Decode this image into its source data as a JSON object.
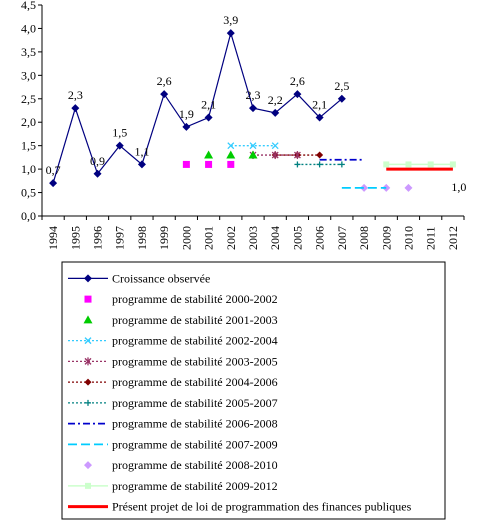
{
  "chart_data": {
    "type": "line",
    "x": [
      "1994",
      "1995",
      "1996",
      "1997",
      "1998",
      "1999",
      "2000",
      "2001",
      "2002",
      "2003",
      "2004",
      "2005",
      "2006",
      "2007",
      "2008",
      "2009",
      "2010",
      "2011",
      "2012"
    ],
    "ylim": [
      0,
      4.5
    ],
    "yticks": [
      "0,0",
      "0,5",
      "1,0",
      "1,5",
      "2,0",
      "2,5",
      "3,0",
      "3,5",
      "4,0",
      "4,5"
    ],
    "grid": false,
    "legend_position": "bottom",
    "series": [
      {
        "name": "Croissance observée",
        "style": "solid-line-diamond",
        "color": "#000080",
        "x": [
          "1994",
          "1995",
          "1996",
          "1997",
          "1998",
          "1999",
          "2000",
          "2001",
          "2002",
          "2003",
          "2004",
          "2005",
          "2006",
          "2007"
        ],
        "values": [
          0.7,
          2.3,
          0.9,
          1.5,
          1.1,
          2.6,
          1.9,
          2.1,
          3.9,
          2.3,
          2.2,
          2.6,
          2.1,
          2.5
        ],
        "labels": [
          "0,7",
          "2,3",
          "0,9",
          "1,5",
          "1,1",
          "2,6",
          "1,9",
          "2,1",
          "3,9",
          "2,3",
          "2,2",
          "2,6",
          "2,1",
          "2,5"
        ]
      },
      {
        "name": "programme de stabilité 2000-2002",
        "style": "marker-square",
        "color": "#FF00FF",
        "x": [
          "2000",
          "2001",
          "2002"
        ],
        "values": [
          1.1,
          1.1,
          1.1
        ]
      },
      {
        "name": "programme de stabilité 2001-2003",
        "style": "marker-triangle",
        "color": "#00CC00",
        "x": [
          "2001",
          "2002",
          "2003"
        ],
        "values": [
          1.3,
          1.3,
          1.3
        ]
      },
      {
        "name": "programme de stabilité 2002-2004",
        "style": "dotted-x",
        "color": "#33CCFF",
        "x": [
          "2002",
          "2003",
          "2004"
        ],
        "values": [
          1.5,
          1.5,
          1.5
        ]
      },
      {
        "name": "programme de stabilité 2003-2005",
        "style": "dotted-star",
        "color": "#993366",
        "x": [
          "2003",
          "2004",
          "2005"
        ],
        "values": [
          1.3,
          1.3,
          1.3
        ]
      },
      {
        "name": "programme de stabilité 2004-2006",
        "style": "dotted-diamond",
        "color": "#800000",
        "x": [
          "2004",
          "2005",
          "2006"
        ],
        "values": [
          1.3,
          1.3,
          1.3
        ]
      },
      {
        "name": "programme de stabilité 2005-2007",
        "style": "dotted-plus",
        "color": "#008080",
        "x": [
          "2005",
          "2006",
          "2007"
        ],
        "values": [
          1.1,
          1.1,
          1.1
        ]
      },
      {
        "name": "programme de stabilité 2006-2008",
        "style": "dash-dot",
        "color": "#0000CC",
        "x": [
          "2006",
          "2007",
          "2008"
        ],
        "values": [
          1.2,
          1.2,
          1.2
        ]
      },
      {
        "name": "programme de stabilité 2007-2009",
        "style": "long-dash",
        "color": "#00CCFF",
        "x": [
          "2007",
          "2008",
          "2009"
        ],
        "values": [
          0.6,
          0.6,
          0.6
        ]
      },
      {
        "name": "programme de stabilité 2008-2010",
        "style": "marker-diamond-light",
        "color": "#CC99FF",
        "x": [
          "2008",
          "2009",
          "2010"
        ],
        "values": [
          0.6,
          0.6,
          0.6
        ]
      },
      {
        "name": "programme de stabilité 2009-2012",
        "style": "light-line-square",
        "color": "#CCFFCC",
        "x": [
          "2009",
          "2010",
          "2011",
          "2012"
        ],
        "values": [
          1.1,
          1.1,
          1.1,
          1.1
        ]
      },
      {
        "name": "Présent projet de loi de programmation des finances publiques",
        "style": "thick-line",
        "color": "#FF0000",
        "x": [
          "2009",
          "2010",
          "2011",
          "2012"
        ],
        "values": [
          1.0,
          1.0,
          1.0,
          1.0
        ],
        "labels": [
          "",
          "",
          "",
          "1,0"
        ]
      }
    ]
  }
}
